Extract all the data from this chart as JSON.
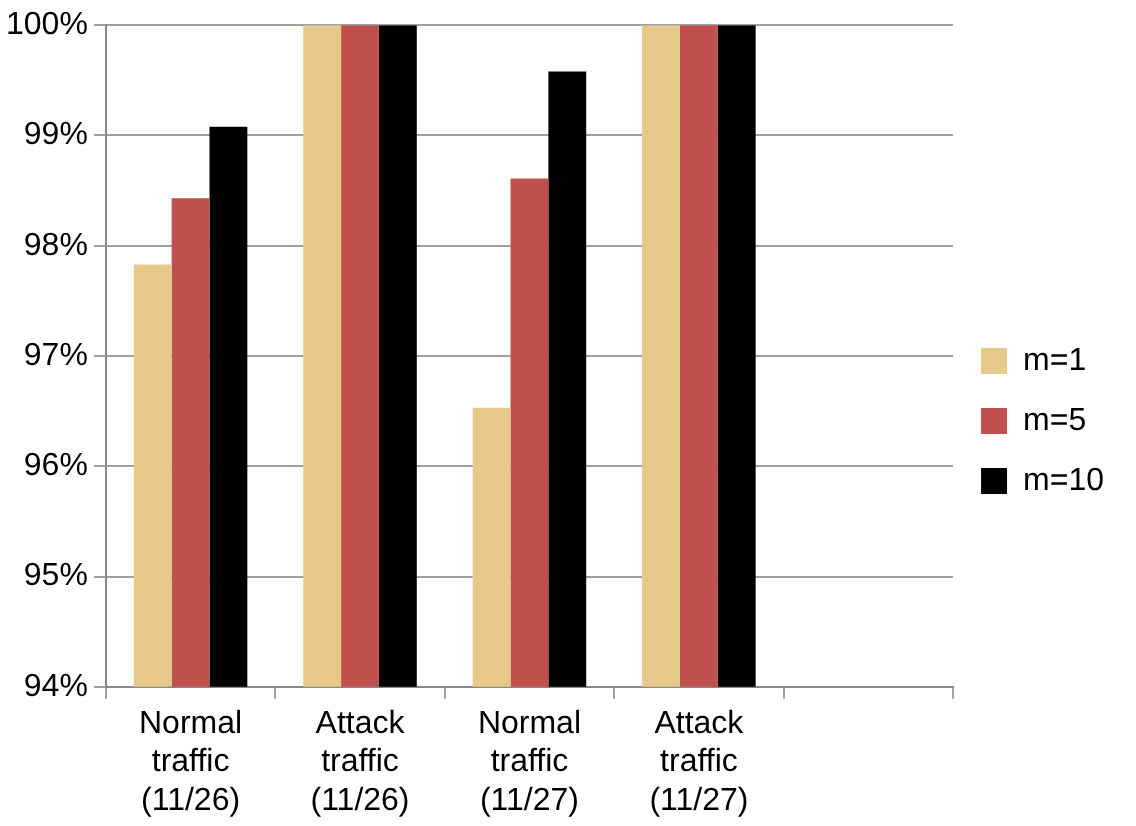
{
  "chart_data": {
    "type": "bar",
    "categories": [
      "Normal traffic (11/26)",
      "Attack traffic (11/26)",
      "Normal traffic (11/27)",
      "Attack traffic (11/27)",
      null
    ],
    "series": [
      {
        "name": "m=1",
        "color": "#e6c98a",
        "values": [
          97.83,
          100,
          96.53,
          100,
          null
        ]
      },
      {
        "name": "m=5",
        "color": "#c0504d",
        "values": [
          98.43,
          100,
          98.61,
          100,
          null
        ]
      },
      {
        "name": "m=10",
        "color": "#000000",
        "values": [
          99.08,
          100,
          99.58,
          100,
          null
        ]
      }
    ],
    "ylim": [
      94,
      100
    ],
    "yticks": [
      {
        "value": 94,
        "label": "94%"
      },
      {
        "value": 95,
        "label": "95%"
      },
      {
        "value": 96,
        "label": "96%"
      },
      {
        "value": 97,
        "label": "97%"
      },
      {
        "value": 98,
        "label": "98%"
      },
      {
        "value": 99,
        "label": "99%"
      },
      {
        "value": 100,
        "label": "100%"
      }
    ],
    "grid": "y",
    "legend": "right"
  }
}
